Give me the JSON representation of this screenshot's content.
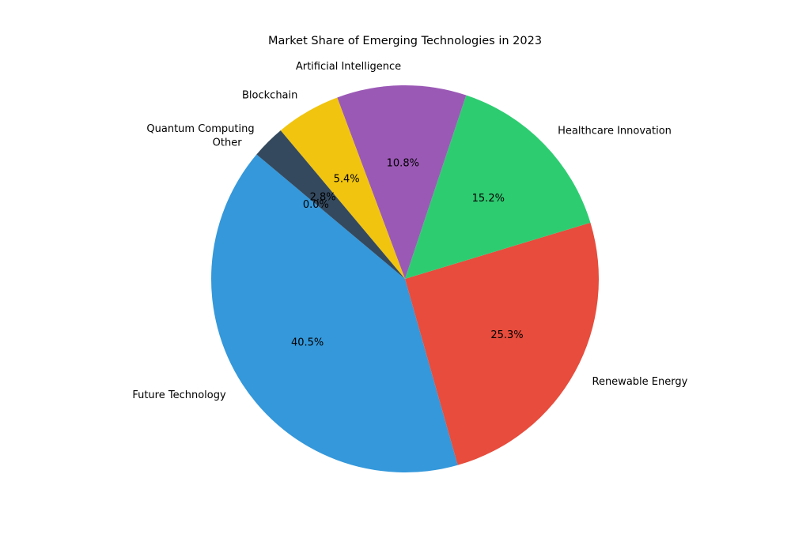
{
  "chart_data": {
    "type": "pie",
    "title": "Market Share of Emerging Technologies in 2023",
    "start_angle_deg": 140,
    "direction": "counterclockwise",
    "legend": "none",
    "slices": [
      {
        "label": "Future Technology",
        "value": 40.5,
        "pct_label": "40.5%",
        "color": "#3498db"
      },
      {
        "label": "Renewable Energy",
        "value": 25.3,
        "pct_label": "25.3%",
        "color": "#e74c3c"
      },
      {
        "label": "Healthcare Innovation",
        "value": 15.2,
        "pct_label": "15.2%",
        "color": "#2ecc71"
      },
      {
        "label": "Artificial Intelligence",
        "value": 10.8,
        "pct_label": "10.8%",
        "color": "#9b59b6"
      },
      {
        "label": "Blockchain",
        "value": 5.4,
        "pct_label": "5.4%",
        "color": "#f1c40f"
      },
      {
        "label": "Quantum Computing",
        "value": 2.8,
        "pct_label": "2.8%",
        "color": "#34495e"
      },
      {
        "label": "Other",
        "value": 0.0,
        "pct_label": "0.0%",
        "color": "#95a5a6"
      }
    ]
  }
}
